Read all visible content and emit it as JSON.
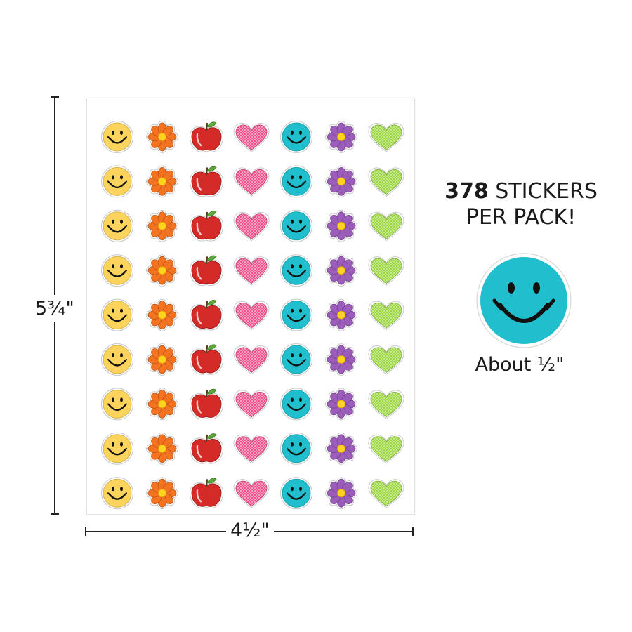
{
  "dimensions": {
    "height_label": "5¾\"",
    "width_label": "4½\""
  },
  "headline": {
    "count": "378",
    "line1_rest": " STICKERS",
    "line2": "PER PACK!"
  },
  "sample": {
    "caption": "About ½\"",
    "icon": "teal-smiley-face-icon"
  },
  "sheet": {
    "rows": 9,
    "columns": [
      {
        "icon": "yellow-smiley-face-icon"
      },
      {
        "icon": "orange-flower-icon"
      },
      {
        "icon": "red-apple-icon"
      },
      {
        "icon": "pink-heart-icon"
      },
      {
        "icon": "teal-smiley-face-icon"
      },
      {
        "icon": "purple-flower-icon"
      },
      {
        "icon": "lime-heart-icon"
      }
    ]
  },
  "colors": {
    "yellow": "#fcd35c",
    "orange": "#f47320",
    "red": "#d42a28",
    "pink": "#f0508c",
    "teal": "#21bfcd",
    "purple": "#9b5cba",
    "lime": "#9ed44a",
    "flower_center": "#ffd320",
    "leaf": "#5ea93a"
  }
}
